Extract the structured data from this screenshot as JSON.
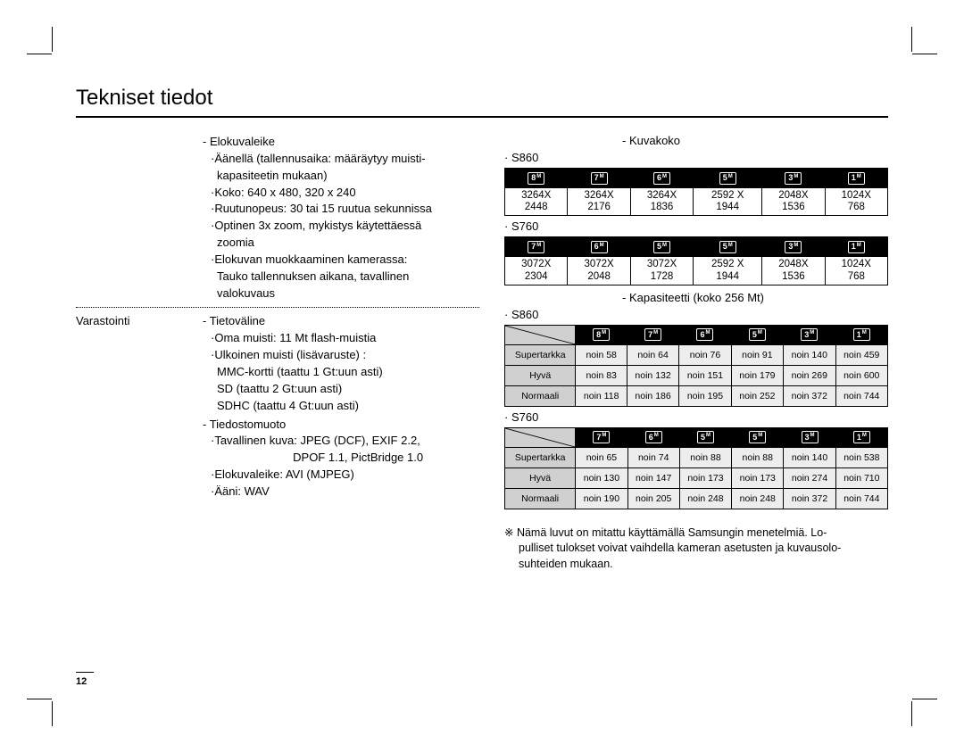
{
  "title": "Tekniset tiedot",
  "page_number": "12",
  "left": {
    "movie_heading": "- Elokuvaleike",
    "movie_lines": [
      "·Äänellä (tallennusaika: määräytyy muisti-",
      " kapasiteetin mukaan)",
      "·Koko: 640 x 480, 320 x 240",
      "·Ruutunopeus: 30 tai 15 ruutua sekunnissa",
      "·Optinen 3x zoom, mykistys käytettäessä",
      " zoomia",
      "·Elokuvan muokkaaminen kamerassa:",
      " Tauko tallennuksen aikana, tavallinen",
      " valokuvaus"
    ],
    "storage_label": "Varastointi",
    "media_heading": "- Tietoväline",
    "media_lines": [
      "·Oma muisti: 11 Mt flash-muistia",
      "·Ulkoinen muisti (lisävaruste) :",
      " MMC-kortti (taattu 1 Gt:uun asti)",
      " SD (taattu 2 Gt:uun asti)",
      " SDHC (taattu 4 Gt:uun asti)"
    ],
    "format_heading": "- Tiedostomuoto",
    "format_lines": [
      "·Tavallinen kuva: JPEG (DCF), EXIF 2.2,",
      "                        DPOF 1.1, PictBridge 1.0",
      "·Elokuvaleike: AVI (MJPEG)",
      "·Ääni: WAV"
    ]
  },
  "right": {
    "imgsize_heading": "- Kuvakoko",
    "model_s860": "· S860",
    "model_s760": "· S760",
    "capacity_heading": "- Kapasiteetti (koko 256 Mt)",
    "res_s860": {
      "headers": [
        "8",
        "7",
        "6",
        "5",
        "3",
        "1"
      ],
      "row": [
        "3264X 2448",
        "3264X 2176",
        "3264X 1836",
        "2592 X 1944",
        "2048X 1536",
        "1024X 768"
      ]
    },
    "res_s760": {
      "headers": [
        "7",
        "6",
        "5",
        "5",
        "3",
        "1"
      ],
      "row": [
        "3072X 2304",
        "3072X 2048",
        "3072X 1728",
        "2592 X 1944",
        "2048X 1536",
        "1024X 768"
      ]
    },
    "cap_s860": {
      "headers": [
        "8",
        "7",
        "6",
        "5",
        "3",
        "1"
      ],
      "row_labels": [
        "Supertarkka",
        "Hyvä",
        "Normaali"
      ],
      "rows": [
        [
          "noin 58",
          "noin 64",
          "noin 76",
          "noin 91",
          "noin 140",
          "noin 459"
        ],
        [
          "noin 83",
          "noin 132",
          "noin 151",
          "noin 179",
          "noin 269",
          "noin 600"
        ],
        [
          "noin 118",
          "noin 186",
          "noin 195",
          "noin 252",
          "noin 372",
          "noin 744"
        ]
      ]
    },
    "cap_s760": {
      "headers": [
        "7",
        "6",
        "5",
        "5",
        "3",
        "1"
      ],
      "row_labels": [
        "Supertarkka",
        "Hyvä",
        "Normaali"
      ],
      "rows": [
        [
          "noin 65",
          "noin 74",
          "noin 88",
          "noin 88",
          "noin 140",
          "noin 538"
        ],
        [
          "noin 130",
          "noin 147",
          "noin 173",
          "noin 173",
          "noin 274",
          "noin 710"
        ],
        [
          "noin 190",
          "noin 205",
          "noin 248",
          "noin 248",
          "noin 372",
          "noin 744"
        ]
      ]
    },
    "footnote_l1": "※ Nämä luvut on mitattu käyttämällä Samsungin menetelmiä. Lo-",
    "footnote_l2": "pulliset tulokset voivat vaihdella kameran asetusten ja kuvausolo-",
    "footnote_l3": "suhteiden mukaan."
  }
}
